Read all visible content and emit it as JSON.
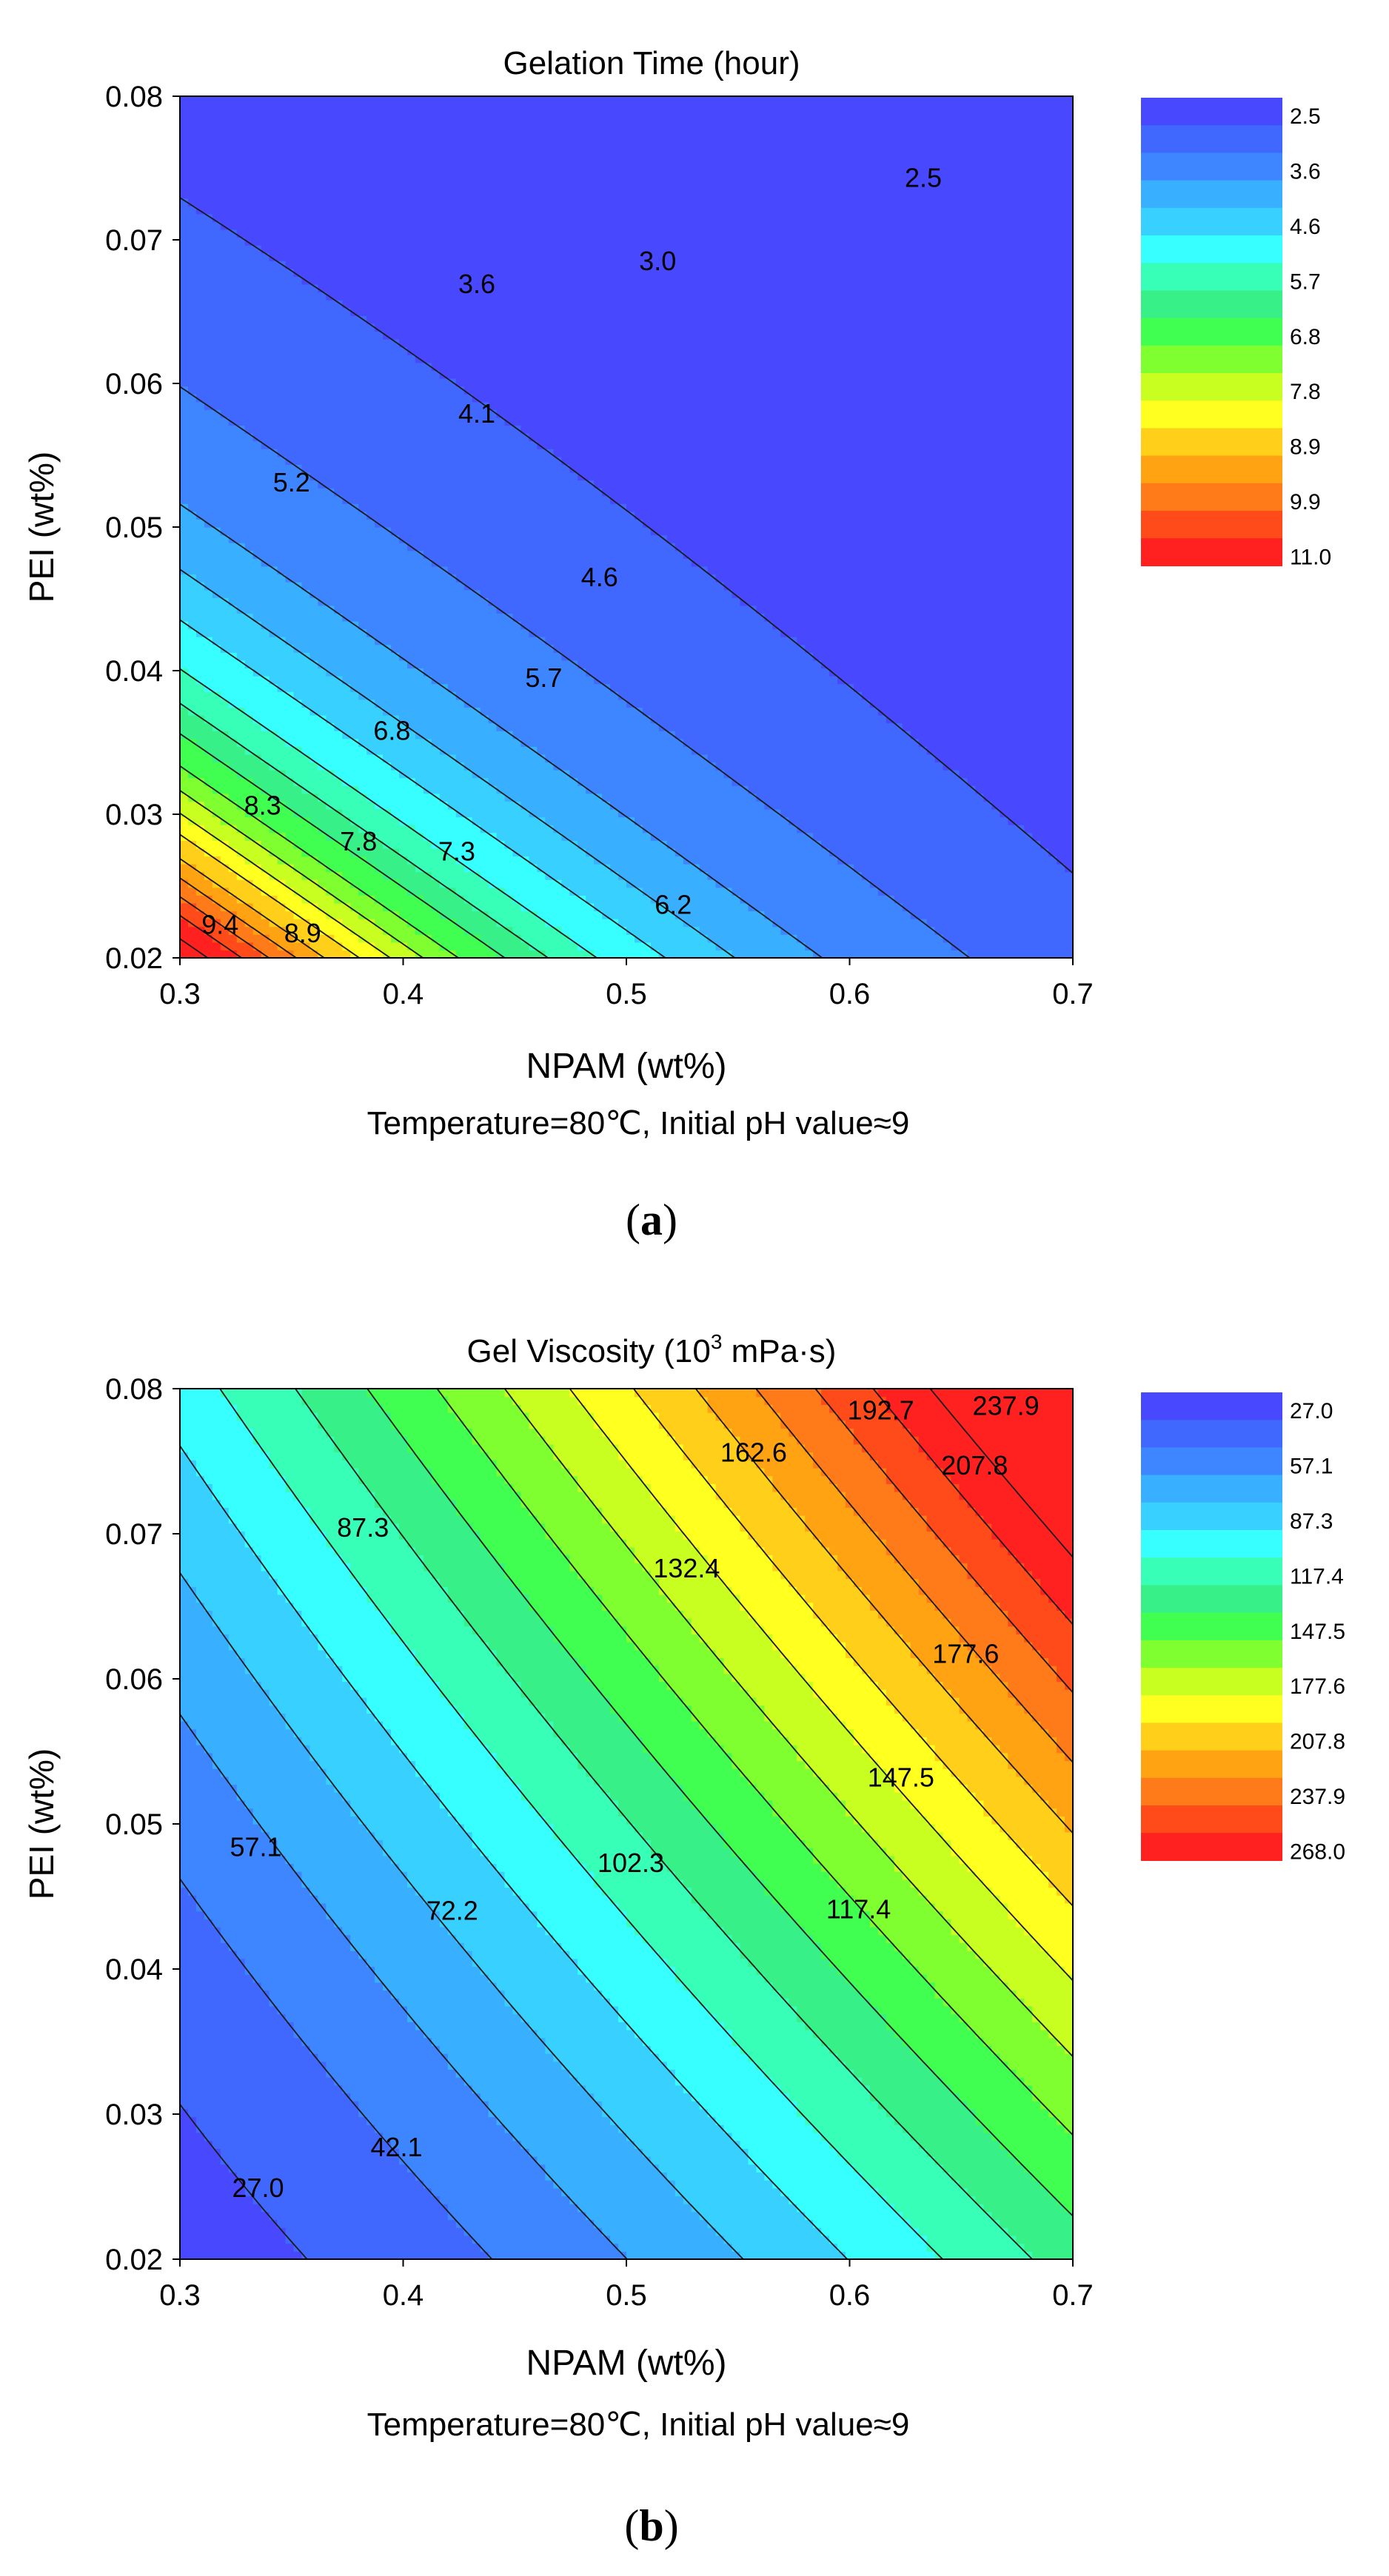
{
  "chart_data": [
    {
      "type": "contour",
      "title": "Gelation Time (hour)",
      "xlabel": "NPAM (wt%)",
      "ylabel": "PEI (wt%)",
      "condition": "Temperature=80℃, Initial pH value≈9",
      "panel_label": "a",
      "xlim": [
        0.3,
        0.7
      ],
      "ylim": [
        0.02,
        0.08
      ],
      "x_ticks": [
        "0.3",
        "0.4",
        "0.5",
        "0.6",
        "0.7"
      ],
      "y_ticks": [
        "0.02",
        "0.03",
        "0.04",
        "0.05",
        "0.06",
        "0.07",
        "0.08"
      ],
      "z_range": [
        2.0,
        11.0
      ],
      "levels": [
        11.0,
        10.4,
        9.9,
        9.4,
        8.9,
        8.3,
        7.8,
        7.3,
        6.8,
        6.2,
        5.7,
        5.2,
        4.6,
        4.1,
        3.6,
        3.0,
        2.5
      ],
      "colorbar_labels": [
        "2.5",
        "3.6",
        "4.6",
        "5.7",
        "6.8",
        "7.8",
        "8.9",
        "9.9",
        "11.0"
      ],
      "contour_labels": [
        {
          "text": "2.5",
          "x": 0.633,
          "y": 0.0744
        },
        {
          "text": "3.0",
          "x": 0.514,
          "y": 0.0686
        },
        {
          "text": "3.6",
          "x": 0.433,
          "y": 0.067
        },
        {
          "text": "4.1",
          "x": 0.433,
          "y": 0.058
        },
        {
          "text": "5.2",
          "x": 0.35,
          "y": 0.0532
        },
        {
          "text": "4.6",
          "x": 0.488,
          "y": 0.0466
        },
        {
          "text": "5.7",
          "x": 0.463,
          "y": 0.0396
        },
        {
          "text": "6.8",
          "x": 0.395,
          "y": 0.0359
        },
        {
          "text": "8.3",
          "x": 0.337,
          "y": 0.0307
        },
        {
          "text": "7.8",
          "x": 0.38,
          "y": 0.0282
        },
        {
          "text": "7.3",
          "x": 0.424,
          "y": 0.0275
        },
        {
          "text": "6.2",
          "x": 0.521,
          "y": 0.0238
        },
        {
          "text": "9.4",
          "x": 0.318,
          "y": 0.0224
        },
        {
          "text": "8.9",
          "x": 0.355,
          "y": 0.0218
        }
      ]
    },
    {
      "type": "contour",
      "title_main": "Gel Viscosity (10",
      "title_sup": "3",
      "title_rest": " mPa·s)",
      "xlabel": "NPAM (wt%)",
      "ylabel": "PEI (wt%)",
      "condition": "Temperature=80℃, Initial pH value≈9",
      "panel_label": "b",
      "xlim": [
        0.3,
        0.7
      ],
      "ylim": [
        0.02,
        0.08
      ],
      "x_ticks": [
        "0.3",
        "0.4",
        "0.5",
        "0.6",
        "0.7"
      ],
      "y_ticks": [
        "0.02",
        "0.03",
        "0.04",
        "0.05",
        "0.06",
        "0.07",
        "0.08"
      ],
      "z_range": [
        22.0,
        275.0
      ],
      "levels": [
        268.0,
        252.9,
        237.9,
        222.8,
        207.8,
        192.7,
        177.6,
        162.6,
        147.5,
        132.4,
        117.4,
        102.3,
        87.3,
        72.2,
        57.1,
        42.1,
        27.0
      ],
      "colorbar_labels": [
        "27.0",
        "57.1",
        "87.3",
        "117.4",
        "147.5",
        "177.6",
        "207.8",
        "237.9",
        "268.0"
      ],
      "contour_labels": [
        {
          "text": "237.9",
          "x": 0.67,
          "y": 0.0789
        },
        {
          "text": "192.7",
          "x": 0.614,
          "y": 0.0786
        },
        {
          "text": "207.8",
          "x": 0.656,
          "y": 0.0748
        },
        {
          "text": "162.6",
          "x": 0.557,
          "y": 0.0757
        },
        {
          "text": "87.3",
          "x": 0.382,
          "y": 0.0705
        },
        {
          "text": "132.4",
          "x": 0.527,
          "y": 0.0677
        },
        {
          "text": "177.6",
          "x": 0.652,
          "y": 0.0618
        },
        {
          "text": "147.5",
          "x": 0.623,
          "y": 0.0533
        },
        {
          "text": "57.1",
          "x": 0.334,
          "y": 0.0485
        },
        {
          "text": "102.3",
          "x": 0.502,
          "y": 0.0474
        },
        {
          "text": "117.4",
          "x": 0.604,
          "y": 0.0442
        },
        {
          "text": "72.2",
          "x": 0.422,
          "y": 0.0441
        },
        {
          "text": "42.1",
          "x": 0.397,
          "y": 0.0278
        },
        {
          "text": "27.0",
          "x": 0.335,
          "y": 0.025
        }
      ]
    }
  ]
}
